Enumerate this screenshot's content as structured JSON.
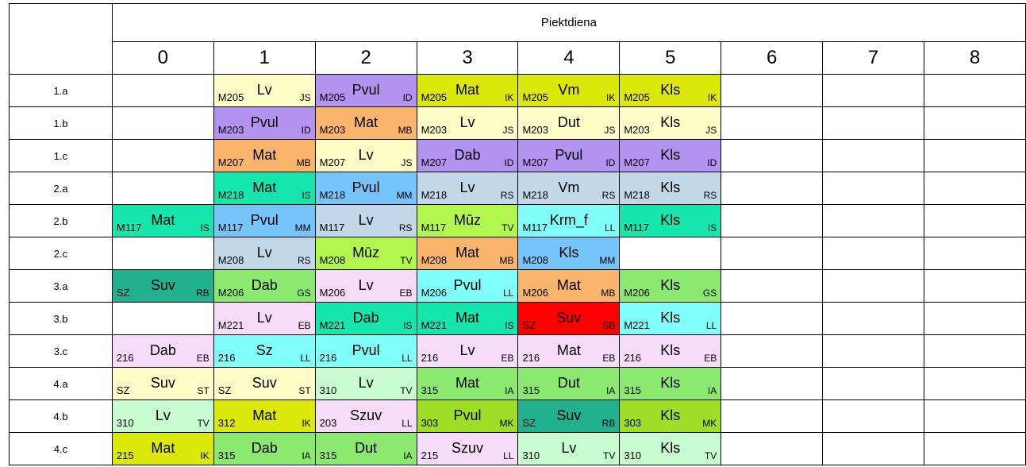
{
  "day": "Piektdiena",
  "periods": [
    "0",
    "1",
    "2",
    "3",
    "4",
    "5",
    "6",
    "7",
    "8"
  ],
  "palette": {
    "lavender": "#b392f0",
    "orange": "#f9b56c",
    "cream": "#fdfbc6",
    "olive": "#dce70a",
    "slate": "#c2d7e8",
    "sky": "#75c4fa",
    "teal": "#14e6ad",
    "darkteal": "#22b18f",
    "lime": "#b2f74e",
    "cyan": "#7ffefa",
    "pink": "#f7dcfa",
    "mint": "#c7fcd0",
    "green": "#8ae96e",
    "red": "#ff0000",
    "grass": "#9fdd27"
  },
  "rows": [
    {
      "cls": "1.a",
      "cells": [
        null,
        {
          "room": "M205",
          "subj": "Lv",
          "tch": "JS",
          "color": "#fdfbc6"
        },
        {
          "room": "M205",
          "subj": "Pvul",
          "tch": "ID",
          "color": "#b392f0"
        },
        {
          "room": "M205",
          "subj": "Mat",
          "tch": "IK",
          "color": "#dce70a"
        },
        {
          "room": "M205",
          "subj": "Vm",
          "tch": "IK",
          "color": "#dce70a"
        },
        {
          "room": "M205",
          "subj": "Kls",
          "tch": "IK",
          "color": "#dce70a"
        },
        null,
        null,
        null
      ]
    },
    {
      "cls": "1.b",
      "cells": [
        null,
        {
          "room": "M203",
          "subj": "Pvul",
          "tch": "ID",
          "color": "#b392f0"
        },
        {
          "room": "M203",
          "subj": "Mat",
          "tch": "MB",
          "color": "#f9b56c"
        },
        {
          "room": "M203",
          "subj": "Lv",
          "tch": "JS",
          "color": "#fdfbc6"
        },
        {
          "room": "M203",
          "subj": "Dut",
          "tch": "JS",
          "color": "#fdfbc6"
        },
        {
          "room": "M203",
          "subj": "Kls",
          "tch": "JS",
          "color": "#fdfbc6"
        },
        null,
        null,
        null
      ]
    },
    {
      "cls": "1.c",
      "cells": [
        null,
        {
          "room": "M207",
          "subj": "Mat",
          "tch": "MB",
          "color": "#f9b56c"
        },
        {
          "room": "M207",
          "subj": "Lv",
          "tch": "JS",
          "color": "#fdfbc6"
        },
        {
          "room": "M207",
          "subj": "Dab",
          "tch": "ID",
          "color": "#b392f0"
        },
        {
          "room": "M207",
          "subj": "Pvul",
          "tch": "ID",
          "color": "#b392f0"
        },
        {
          "room": "M207",
          "subj": "Kls",
          "tch": "ID",
          "color": "#b392f0"
        },
        null,
        null,
        null
      ]
    },
    {
      "cls": "2.a",
      "cells": [
        null,
        {
          "room": "M218",
          "subj": "Mat",
          "tch": "IS",
          "color": "#14e6ad"
        },
        {
          "room": "M218",
          "subj": "Pvul",
          "tch": "MM",
          "color": "#75c4fa"
        },
        {
          "room": "M218",
          "subj": "Lv",
          "tch": "RS",
          "color": "#c2d7e8"
        },
        {
          "room": "M218",
          "subj": "Vm",
          "tch": "RS",
          "color": "#c2d7e8"
        },
        {
          "room": "M218",
          "subj": "Kls",
          "tch": "RS",
          "color": "#c2d7e8"
        },
        null,
        null,
        null
      ]
    },
    {
      "cls": "2.b",
      "cells": [
        {
          "room": "M117",
          "subj": "Mat",
          "tch": "IS",
          "color": "#14e6ad"
        },
        {
          "room": "M117",
          "subj": "Pvul",
          "tch": "MM",
          "color": "#75c4fa"
        },
        {
          "room": "M117",
          "subj": "Lv",
          "tch": "RS",
          "color": "#c2d7e8"
        },
        {
          "room": "M117",
          "subj": "Mūz",
          "tch": "TV",
          "color": "#b2f74e"
        },
        {
          "room": "M117",
          "subj": "Krm_f",
          "tch": "LL",
          "color": "#7ffefa"
        },
        {
          "room": "M117",
          "subj": "Kls",
          "tch": "IS",
          "color": "#14e6ad"
        },
        null,
        null,
        null
      ]
    },
    {
      "cls": "2.c",
      "cells": [
        null,
        {
          "room": "M208",
          "subj": "Lv",
          "tch": "RS",
          "color": "#c2d7e8"
        },
        {
          "room": "M208",
          "subj": "Mūz",
          "tch": "TV",
          "color": "#b2f74e"
        },
        {
          "room": "M208",
          "subj": "Mat",
          "tch": "MB",
          "color": "#f9b56c"
        },
        {
          "room": "M208",
          "subj": "Kls",
          "tch": "MM",
          "color": "#75c4fa"
        },
        null,
        null,
        null,
        null
      ]
    },
    {
      "cls": "3.a",
      "cells": [
        {
          "room": "SZ",
          "subj": "Suv",
          "tch": "RB",
          "color": "#22b18f"
        },
        {
          "room": "M206",
          "subj": "Dab",
          "tch": "GS",
          "color": "#8ae96e"
        },
        {
          "room": "M206",
          "subj": "Lv",
          "tch": "EB",
          "color": "#f7dcfa"
        },
        {
          "room": "M206",
          "subj": "Pvul",
          "tch": "LL",
          "color": "#7ffefa"
        },
        {
          "room": "M206",
          "subj": "Mat",
          "tch": "MB",
          "color": "#f9b56c"
        },
        {
          "room": "M206",
          "subj": "Kls",
          "tch": "GS",
          "color": "#8ae96e"
        },
        null,
        null,
        null
      ]
    },
    {
      "cls": "3.b",
      "cells": [
        null,
        {
          "room": "M221",
          "subj": "Lv",
          "tch": "EB",
          "color": "#f7dcfa"
        },
        {
          "room": "M221",
          "subj": "Dab",
          "tch": "IS",
          "color": "#14e6ad"
        },
        {
          "room": "M221",
          "subj": "Mat",
          "tch": "IS",
          "color": "#14e6ad"
        },
        {
          "room": "SZ",
          "subj": "Suv",
          "tch": "SB",
          "color": "#ff0000"
        },
        {
          "room": "M221",
          "subj": "Kls",
          "tch": "LL",
          "color": "#7ffefa"
        },
        null,
        null,
        null
      ]
    },
    {
      "cls": "3.c",
      "cells": [
        {
          "room": "216",
          "subj": "Dab",
          "tch": "EB",
          "color": "#f7dcfa"
        },
        {
          "room": "216",
          "subj": "Sz",
          "tch": "LL",
          "color": "#7ffefa"
        },
        {
          "room": "216",
          "subj": "Pvul",
          "tch": "LL",
          "color": "#7ffefa"
        },
        {
          "room": "216",
          "subj": "Lv",
          "tch": "EB",
          "color": "#f7dcfa"
        },
        {
          "room": "216",
          "subj": "Mat",
          "tch": "EB",
          "color": "#f7dcfa"
        },
        {
          "room": "216",
          "subj": "Kls",
          "tch": "EB",
          "color": "#f7dcfa"
        },
        null,
        null,
        null
      ]
    },
    {
      "cls": "4.a",
      "cells": [
        {
          "room": "SZ",
          "subj": "Suv",
          "tch": "ST",
          "color": "#fdfbc6"
        },
        {
          "room": "SZ",
          "subj": "Suv",
          "tch": "ST",
          "color": "#fdfbc6"
        },
        {
          "room": "310",
          "subj": "Lv",
          "tch": "TV",
          "color": "#c7fcd0"
        },
        {
          "room": "315",
          "subj": "Mat",
          "tch": "IA",
          "color": "#8ae96e"
        },
        {
          "room": "315",
          "subj": "Dut",
          "tch": "IA",
          "color": "#8ae96e"
        },
        {
          "room": "315",
          "subj": "Kls",
          "tch": "IA",
          "color": "#8ae96e"
        },
        null,
        null,
        null
      ]
    },
    {
      "cls": "4.b",
      "cells": [
        {
          "room": "310",
          "subj": "Lv",
          "tch": "TV",
          "color": "#c7fcd0"
        },
        {
          "room": "312",
          "subj": "Mat",
          "tch": "IK",
          "color": "#dce70a"
        },
        {
          "room": "203",
          "subj": "Szuv",
          "tch": "LL",
          "color": "#f7dcfa"
        },
        {
          "room": "303",
          "subj": "Pvul",
          "tch": "MK",
          "color": "#9fdd27"
        },
        {
          "room": "SZ",
          "subj": "Suv",
          "tch": "RB",
          "color": "#22b18f"
        },
        {
          "room": "303",
          "subj": "Kls",
          "tch": "MK",
          "color": "#9fdd27"
        },
        null,
        null,
        null
      ]
    },
    {
      "cls": "4.c",
      "cells": [
        {
          "room": "215",
          "subj": "Mat",
          "tch": "IK",
          "color": "#dce70a"
        },
        {
          "room": "315",
          "subj": "Dab",
          "tch": "IA",
          "color": "#8ae96e"
        },
        {
          "room": "315",
          "subj": "Dut",
          "tch": "IA",
          "color": "#8ae96e"
        },
        {
          "room": "215",
          "subj": "Szuv",
          "tch": "LL",
          "color": "#f7dcfa"
        },
        {
          "room": "310",
          "subj": "Lv",
          "tch": "TV",
          "color": "#c7fcd0"
        },
        {
          "room": "310",
          "subj": "Kls",
          "tch": "TV",
          "color": "#c7fcd0"
        },
        null,
        null,
        null
      ]
    }
  ]
}
